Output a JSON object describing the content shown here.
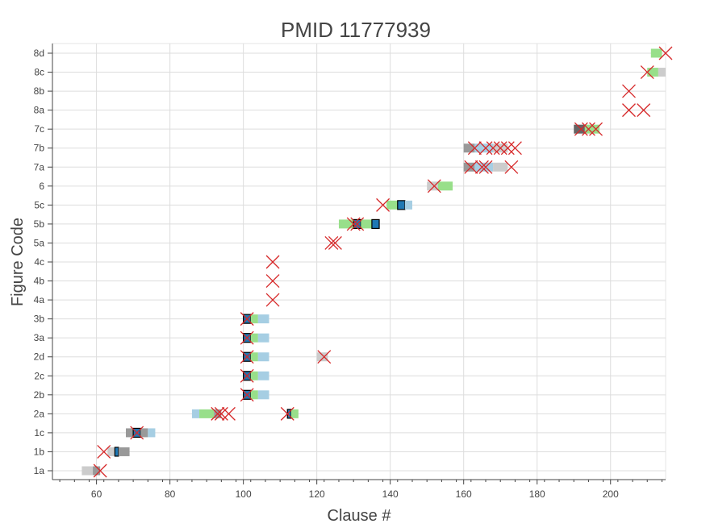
{
  "chart_data": {
    "type": "scatter",
    "title": "PMID 11777939",
    "xlabel": "Clause #",
    "ylabel": "Figure Code",
    "xlim": [
      48,
      215
    ],
    "x_ticks": [
      60,
      80,
      100,
      120,
      140,
      160,
      180,
      200
    ],
    "categories": [
      "1a",
      "1b",
      "1c",
      "2a",
      "2b",
      "2c",
      "2d",
      "3a",
      "3b",
      "4a",
      "4b",
      "4c",
      "5a",
      "5b",
      "5c",
      "6",
      "7a",
      "7b",
      "7c",
      "8a",
      "8b",
      "8c",
      "8d"
    ],
    "grid": true,
    "colors": {
      "x_marker": "#d62728",
      "gray_light": "#cccccc",
      "gray_mid": "#999999",
      "gray_dark": "#666666",
      "blue_light": "#a6cee3",
      "blue_dark": "#1f78b4",
      "green_light": "#98df8a",
      "grid": "#dddddd",
      "outline": "#000000"
    },
    "bands": [
      {
        "category": "1a",
        "segments": [
          [
            56,
            59,
            "gray_light"
          ],
          [
            59,
            61,
            "gray_mid"
          ]
        ]
      },
      {
        "category": "1b",
        "segments": [
          [
            63,
            65,
            "gray_light"
          ],
          [
            65,
            66,
            "blue_dark"
          ],
          [
            66,
            69,
            "gray_mid"
          ]
        ]
      },
      {
        "category": "1c",
        "segments": [
          [
            68,
            70,
            "gray_mid"
          ],
          [
            70,
            72,
            "blue_dark"
          ],
          [
            72,
            74,
            "gray_mid"
          ],
          [
            74,
            76,
            "blue_light"
          ]
        ]
      },
      {
        "category": "2a",
        "segments": [
          [
            86,
            88,
            "blue_light"
          ],
          [
            88,
            92,
            "green_light"
          ],
          [
            92,
            94,
            "gray_mid"
          ],
          [
            112,
            113,
            "blue_dark"
          ],
          [
            113,
            115,
            "green_light"
          ]
        ]
      },
      {
        "category": "2b",
        "segments": [
          [
            100,
            102,
            "blue_dark"
          ],
          [
            102,
            104,
            "green_light"
          ],
          [
            104,
            107,
            "blue_light"
          ]
        ]
      },
      {
        "category": "2c",
        "segments": [
          [
            100,
            102,
            "blue_dark"
          ],
          [
            102,
            104,
            "green_light"
          ],
          [
            104,
            107,
            "blue_light"
          ]
        ]
      },
      {
        "category": "2d",
        "segments": [
          [
            100,
            102,
            "blue_dark"
          ],
          [
            102,
            104,
            "green_light"
          ],
          [
            104,
            107,
            "blue_light"
          ],
          [
            120,
            123,
            "gray_light"
          ]
        ]
      },
      {
        "category": "3a",
        "segments": [
          [
            100,
            102,
            "blue_dark"
          ],
          [
            102,
            104,
            "green_light"
          ],
          [
            104,
            107,
            "blue_light"
          ]
        ]
      },
      {
        "category": "3b",
        "segments": [
          [
            100,
            102,
            "blue_dark"
          ],
          [
            102,
            104,
            "green_light"
          ],
          [
            104,
            107,
            "blue_light"
          ]
        ]
      },
      {
        "category": "5b",
        "segments": [
          [
            126,
            130,
            "green_light"
          ],
          [
            130,
            132,
            "blue_dark"
          ],
          [
            132,
            135,
            "green_light"
          ],
          [
            135,
            137,
            "blue_dark"
          ]
        ]
      },
      {
        "category": "5c",
        "segments": [
          [
            139,
            142,
            "green_light"
          ],
          [
            142,
            144,
            "blue_dark"
          ],
          [
            144,
            146,
            "blue_light"
          ]
        ]
      },
      {
        "category": "6",
        "segments": [
          [
            150,
            153,
            "gray_light"
          ],
          [
            153,
            157,
            "green_light"
          ]
        ]
      },
      {
        "category": "7a",
        "segments": [
          [
            160,
            163,
            "gray_mid"
          ],
          [
            163,
            168,
            "blue_light"
          ],
          [
            168,
            172,
            "gray_light"
          ]
        ]
      },
      {
        "category": "7b",
        "segments": [
          [
            160,
            163,
            "gray_mid"
          ],
          [
            163,
            168,
            "blue_light"
          ],
          [
            168,
            172,
            "gray_light"
          ]
        ]
      },
      {
        "category": "7c",
        "segments": [
          [
            190,
            193,
            "gray_dark"
          ],
          [
            193,
            197,
            "green_light"
          ]
        ]
      },
      {
        "category": "8c",
        "segments": [
          [
            210,
            213,
            "green_light"
          ],
          [
            213,
            215,
            "gray_light"
          ]
        ]
      },
      {
        "category": "8d",
        "segments": [
          [
            211,
            214,
            "green_light"
          ]
        ]
      }
    ],
    "markers": [
      {
        "category": "1a",
        "x": [
          61
        ]
      },
      {
        "category": "1b",
        "x": [
          62
        ]
      },
      {
        "category": "1c",
        "x": [
          71
        ]
      },
      {
        "category": "2a",
        "x": [
          93,
          94,
          96,
          112
        ]
      },
      {
        "category": "2b",
        "x": [
          101
        ]
      },
      {
        "category": "2c",
        "x": [
          101
        ]
      },
      {
        "category": "2d",
        "x": [
          101,
          122
        ]
      },
      {
        "category": "3a",
        "x": [
          101
        ]
      },
      {
        "category": "3b",
        "x": [
          101
        ]
      },
      {
        "category": "4a",
        "x": [
          108
        ]
      },
      {
        "category": "4b",
        "x": [
          108
        ]
      },
      {
        "category": "4c",
        "x": [
          108
        ]
      },
      {
        "category": "5a",
        "x": [
          124,
          125
        ]
      },
      {
        "category": "5b",
        "x": [
          130,
          131
        ]
      },
      {
        "category": "5c",
        "x": [
          138
        ]
      },
      {
        "category": "6",
        "x": [
          152
        ]
      },
      {
        "category": "7a",
        "x": [
          162,
          165,
          166,
          173
        ]
      },
      {
        "category": "7b",
        "x": [
          163,
          166,
          168,
          170,
          172,
          174
        ]
      },
      {
        "category": "7c",
        "x": [
          192,
          194,
          196
        ]
      },
      {
        "category": "8a",
        "x": [
          205,
          209
        ]
      },
      {
        "category": "8b",
        "x": [
          205
        ]
      },
      {
        "category": "8c",
        "x": [
          210
        ]
      },
      {
        "category": "8d",
        "x": [
          215
        ]
      }
    ]
  }
}
